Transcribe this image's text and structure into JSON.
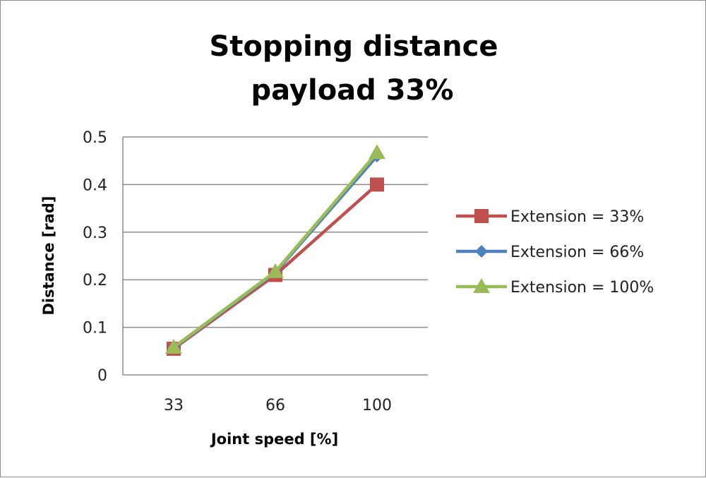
{
  "chart_data": {
    "type": "line",
    "title": "Stopping distance",
    "subtitle": "payload 33%",
    "xlabel": "Joint speed [%]",
    "ylabel": "Distance [rad]",
    "categories": [
      "33",
      "66",
      "100"
    ],
    "ylim": [
      0,
      0.5
    ],
    "yticks": [
      "0",
      "0.1",
      "0.2",
      "0.3",
      "0.4",
      "0.5"
    ],
    "grid": true,
    "legend_position": "right",
    "series": [
      {
        "name": "Extension = 33%",
        "values": [
          0.055,
          0.21,
          0.4
        ],
        "color": "#c0504d",
        "marker": "square"
      },
      {
        "name": "Extension = 66%",
        "values": [
          0.057,
          0.215,
          0.46
        ],
        "color": "#4f81bd",
        "marker": "diamond"
      },
      {
        "name": "Extension = 100%",
        "values": [
          0.058,
          0.217,
          0.467
        ],
        "color": "#9bbb59",
        "marker": "triangle"
      }
    ]
  }
}
